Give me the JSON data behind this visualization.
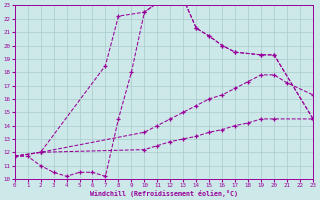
{
  "xlabel": "Windchill (Refroidissement éolien,°C)",
  "background_color": "#cce8e8",
  "grid_color": "#aacccc",
  "line_color": "#990099",
  "xmin": 0,
  "xmax": 23,
  "ymin": 10,
  "ymax": 23,
  "curve_top_x": [
    0,
    2,
    7,
    8,
    10,
    11,
    12,
    13,
    14,
    15,
    16,
    17,
    19,
    20,
    23
  ],
  "curve_top_y": [
    11.7,
    12.0,
    18.5,
    22.2,
    22.5,
    23.2,
    23.5,
    23.5,
    21.3,
    20.7,
    20.0,
    19.5,
    19.3,
    19.3,
    14.5
  ],
  "curve_zigzag_x": [
    0,
    1,
    2,
    3,
    4,
    5,
    6,
    7,
    8,
    9,
    10,
    11,
    12,
    13,
    14,
    15,
    16,
    17,
    19,
    20,
    23
  ],
  "curve_zigzag_y": [
    11.7,
    11.7,
    11.0,
    10.5,
    10.2,
    10.5,
    10.5,
    10.2,
    14.5,
    18.0,
    22.5,
    23.2,
    23.5,
    23.5,
    21.3,
    20.7,
    20.0,
    19.5,
    19.3,
    19.3,
    14.5
  ],
  "curve_mid_x": [
    0,
    2,
    10,
    11,
    12,
    13,
    14,
    15,
    16,
    17,
    18,
    19,
    20,
    21,
    23
  ],
  "curve_mid_y": [
    11.7,
    12.0,
    13.5,
    14.0,
    14.5,
    15.0,
    15.5,
    16.0,
    16.3,
    16.8,
    17.3,
    17.8,
    17.8,
    17.2,
    16.3
  ],
  "curve_bot_x": [
    0,
    2,
    10,
    11,
    12,
    13,
    14,
    15,
    16,
    17,
    18,
    19,
    20,
    23
  ],
  "curve_bot_y": [
    11.7,
    12.0,
    12.2,
    12.5,
    12.8,
    13.0,
    13.2,
    13.5,
    13.7,
    14.0,
    14.2,
    14.5,
    14.5,
    14.5
  ]
}
